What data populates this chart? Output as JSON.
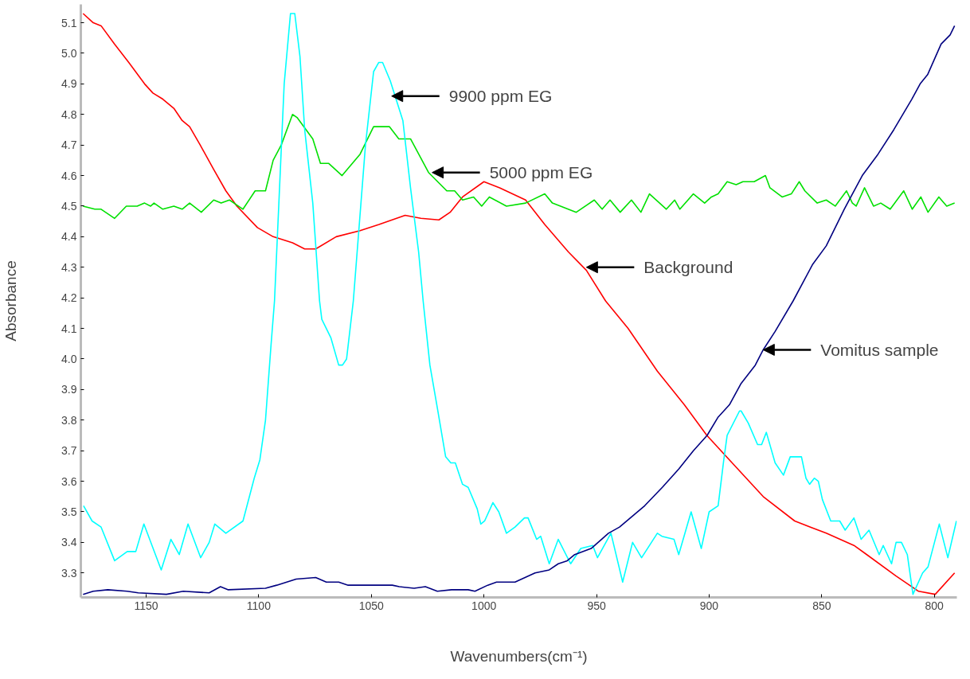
{
  "chart_data": {
    "type": "line",
    "xlabel": "Wavenumbers(cm⁻¹)",
    "ylabel": "Absorbance",
    "xlim": [
      1179,
      790
    ],
    "ylim": [
      3.22,
      5.16
    ],
    "xticks": [
      1150,
      1100,
      1050,
      1000,
      950,
      900,
      850,
      800
    ],
    "yticks": [
      3.3,
      3.4,
      3.5,
      3.6,
      3.7,
      3.8,
      3.9,
      {
        "value": 4,
        "label": "4.0"
      },
      4.1,
      4.2,
      4.3,
      4.4,
      4.5,
      4.6,
      4.7,
      4.8,
      4.9,
      {
        "value": 5,
        "label": "5.0"
      },
      5.1
    ],
    "grid": false,
    "marker": "none",
    "line_style": "solid",
    "series": [
      {
        "color": "#ff0000",
        "x": [
          1178,
          1173.5,
          1170,
          1164,
          1157.7,
          1150.7,
          1147,
          1142.6,
          1137.7,
          1134,
          1130.7,
          1126,
          1120,
          1114.6,
          1109.7,
          1100.6,
          1093.6,
          1085,
          1079.6,
          1074.7,
          1065.6,
          1055,
          1046.6,
          1035,
          1028,
          1020,
          1015,
          1009.5,
          1000,
          993,
          981.5,
          973,
          962.5,
          954.5,
          946,
          936,
          923,
          911,
          901,
          891,
          876,
          862,
          848,
          835.7,
          830,
          817,
          807,
          799.6,
          791
        ],
        "values": [
          5.13,
          5.1,
          5.09,
          5.03,
          4.97,
          4.9,
          4.87,
          4.85,
          4.82,
          4.78,
          4.76,
          4.7,
          4.62,
          4.55,
          4.5,
          4.43,
          4.4,
          4.38,
          4.36,
          4.36,
          4.4,
          4.42,
          4.44,
          4.47,
          4.46,
          4.455,
          4.48,
          4.53,
          4.58,
          4.56,
          4.52,
          4.44,
          4.35,
          4.29,
          4.19,
          4.1,
          3.96,
          3.85,
          3.75,
          3.67,
          3.55,
          3.47,
          3.43,
          3.39,
          3.36,
          3.29,
          3.24,
          3.23,
          3.3
        ]
      },
      {
        "color": "#00e000",
        "x": [
          1178,
          1172.8,
          1170,
          1164,
          1158.8,
          1154,
          1150.7,
          1148,
          1146.5,
          1142.6,
          1137.7,
          1134,
          1130.7,
          1125.5,
          1120,
          1116.7,
          1113,
          1107,
          1101.6,
          1097,
          1093.6,
          1090,
          1085,
          1083,
          1076,
          1072.6,
          1069,
          1063,
          1055,
          1049,
          1046.6,
          1042,
          1037.8,
          1032.6,
          1024.6,
          1016.5,
          1013,
          1009.5,
          1004.6,
          1001,
          997.6,
          990,
          981.5,
          973,
          969.6,
          959,
          951,
          947.5,
          944,
          939.5,
          934.5,
          930.3,
          926.5,
          919,
          915.3,
          913,
          907,
          902,
          899,
          896,
          892,
          888,
          885,
          880,
          875,
          873,
          867.6,
          863.5,
          860,
          857.5,
          852,
          848,
          844,
          839,
          836.4,
          834.7,
          831,
          827,
          823.8,
          819.6,
          813.6,
          809.8,
          806,
          802.8,
          798,
          794.5,
          791
        ],
        "values": [
          4.5,
          4.49,
          4.49,
          4.46,
          4.5,
          4.5,
          4.51,
          4.5,
          4.51,
          4.49,
          4.5,
          4.49,
          4.51,
          4.48,
          4.52,
          4.51,
          4.52,
          4.49,
          4.55,
          4.55,
          4.65,
          4.7,
          4.8,
          4.79,
          4.72,
          4.64,
          4.64,
          4.6,
          4.67,
          4.76,
          4.76,
          4.76,
          4.72,
          4.72,
          4.61,
          4.55,
          4.55,
          4.52,
          4.53,
          4.5,
          4.53,
          4.5,
          4.51,
          4.54,
          4.51,
          4.48,
          4.52,
          4.49,
          4.52,
          4.48,
          4.52,
          4.48,
          4.54,
          4.49,
          4.52,
          4.49,
          4.54,
          4.51,
          4.53,
          4.54,
          4.58,
          4.57,
          4.58,
          4.58,
          4.6,
          4.56,
          4.53,
          4.54,
          4.58,
          4.55,
          4.51,
          4.52,
          4.5,
          4.55,
          4.51,
          4.5,
          4.56,
          4.5,
          4.51,
          4.49,
          4.55,
          4.49,
          4.53,
          4.48,
          4.53,
          4.5,
          4.51
        ]
      },
      {
        "color": "#00ffff",
        "x": [
          1177.8,
          1174,
          1170,
          1164,
          1158.4,
          1154.6,
          1151,
          1143.3,
          1139,
          1135.3,
          1131.4,
          1125.8,
          1122,
          1119.5,
          1114.6,
          1107,
          1102,
          1099.5,
          1097,
          1094.6,
          1093,
          1088.7,
          1085.9,
          1084,
          1081.7,
          1079.6,
          1076,
          1073,
          1072,
          1068,
          1064.5,
          1062.8,
          1061,
          1058,
          1052.6,
          1049,
          1046.7,
          1045,
          1041.6,
          1036,
          1032.6,
          1029,
          1027,
          1024,
          1020.7,
          1017,
          1014.7,
          1012.7,
          1009.5,
          1007,
          1003,
          1001.4,
          999.7,
          996,
          993.4,
          990,
          986.2,
          982,
          980.4,
          976.6,
          974.8,
          971,
          967,
          961.5,
          957,
          951.7,
          949.6,
          943.6,
          938.4,
          934,
          930,
          923,
          921,
          915.6,
          913.5,
          908,
          903.5,
          900,
          896,
          893.5,
          892,
          886.5,
          885.8,
          882.6,
          878.5,
          876.7,
          874.6,
          870.7,
          867,
          864,
          859,
          857,
          855.4,
          853.3,
          851.5,
          849.7,
          846,
          842,
          839.6,
          835.7,
          832.5,
          829,
          824.5,
          822.7,
          819,
          817,
          814.6,
          812,
          809.5,
          805.2,
          802.8,
          797.8,
          794,
          790.2
        ],
        "values": [
          3.52,
          3.47,
          3.45,
          3.34,
          3.37,
          3.37,
          3.46,
          3.31,
          3.41,
          3.36,
          3.46,
          3.35,
          3.4,
          3.46,
          3.43,
          3.47,
          3.61,
          3.67,
          3.8,
          4.04,
          4.19,
          4.9,
          5.13,
          5.13,
          4.99,
          4.75,
          4.51,
          4.19,
          4.13,
          4.07,
          3.98,
          3.98,
          4.0,
          4.19,
          4.7,
          4.94,
          4.97,
          4.97,
          4.91,
          4.78,
          4.56,
          4.35,
          4.19,
          3.98,
          3.84,
          3.68,
          3.66,
          3.66,
          3.59,
          3.58,
          3.51,
          3.46,
          3.47,
          3.53,
          3.5,
          3.43,
          3.45,
          3.48,
          3.48,
          3.41,
          3.42,
          3.33,
          3.41,
          3.33,
          3.38,
          3.39,
          3.35,
          3.43,
          3.27,
          3.4,
          3.35,
          3.43,
          3.42,
          3.41,
          3.36,
          3.5,
          3.38,
          3.5,
          3.52,
          3.67,
          3.75,
          3.83,
          3.83,
          3.79,
          3.72,
          3.72,
          3.76,
          3.66,
          3.62,
          3.68,
          3.68,
          3.61,
          3.59,
          3.61,
          3.6,
          3.54,
          3.47,
          3.47,
          3.44,
          3.48,
          3.41,
          3.44,
          3.36,
          3.39,
          3.33,
          3.4,
          3.4,
          3.36,
          3.23,
          3.3,
          3.32,
          3.46,
          3.35,
          3.47
        ]
      },
      {
        "color": "#000080",
        "x": [
          1178,
          1173.5,
          1167,
          1158.4,
          1153.5,
          1141,
          1133.5,
          1122,
          1117,
          1113.5,
          1097,
          1092,
          1083.4,
          1074.7,
          1070,
          1064.5,
          1060.3,
          1040.7,
          1037.6,
          1031,
          1026,
          1020.7,
          1014.4,
          1007,
          1004,
          998.3,
          994.4,
          986.2,
          977.3,
          971,
          967,
          963,
          959.7,
          952.4,
          944.7,
          939.8,
          928.6,
          920.8,
          913.5,
          907,
          900.9,
          896,
          891,
          885.8,
          879.5,
          876,
          870.7,
          862.7,
          854,
          848,
          840,
          832,
          825,
          818,
          810,
          806.3,
          803,
          797,
          793,
          791
        ],
        "values": [
          3.23,
          3.24,
          3.245,
          3.24,
          3.235,
          3.23,
          3.24,
          3.235,
          3.255,
          3.245,
          3.25,
          3.26,
          3.28,
          3.285,
          3.27,
          3.27,
          3.26,
          3.26,
          3.255,
          3.25,
          3.255,
          3.24,
          3.245,
          3.245,
          3.24,
          3.26,
          3.27,
          3.27,
          3.3,
          3.31,
          3.33,
          3.34,
          3.36,
          3.38,
          3.43,
          3.45,
          3.52,
          3.58,
          3.64,
          3.7,
          3.75,
          3.81,
          3.85,
          3.92,
          3.98,
          4.03,
          4.09,
          4.19,
          4.31,
          4.37,
          4.49,
          4.6,
          4.67,
          4.75,
          4.85,
          4.9,
          4.93,
          5.03,
          5.06,
          5.09
        ]
      }
    ],
    "annotations": [
      {
        "text": "9900 ppm EG",
        "x": 1041,
        "y": 4.86
      },
      {
        "text": "5000 ppm EG",
        "x": 1023,
        "y": 4.61
      },
      {
        "text": "Background",
        "x": 954.5,
        "y": 4.3
      },
      {
        "text": "Vomitus sample",
        "x": 876,
        "y": 4.03
      }
    ]
  }
}
